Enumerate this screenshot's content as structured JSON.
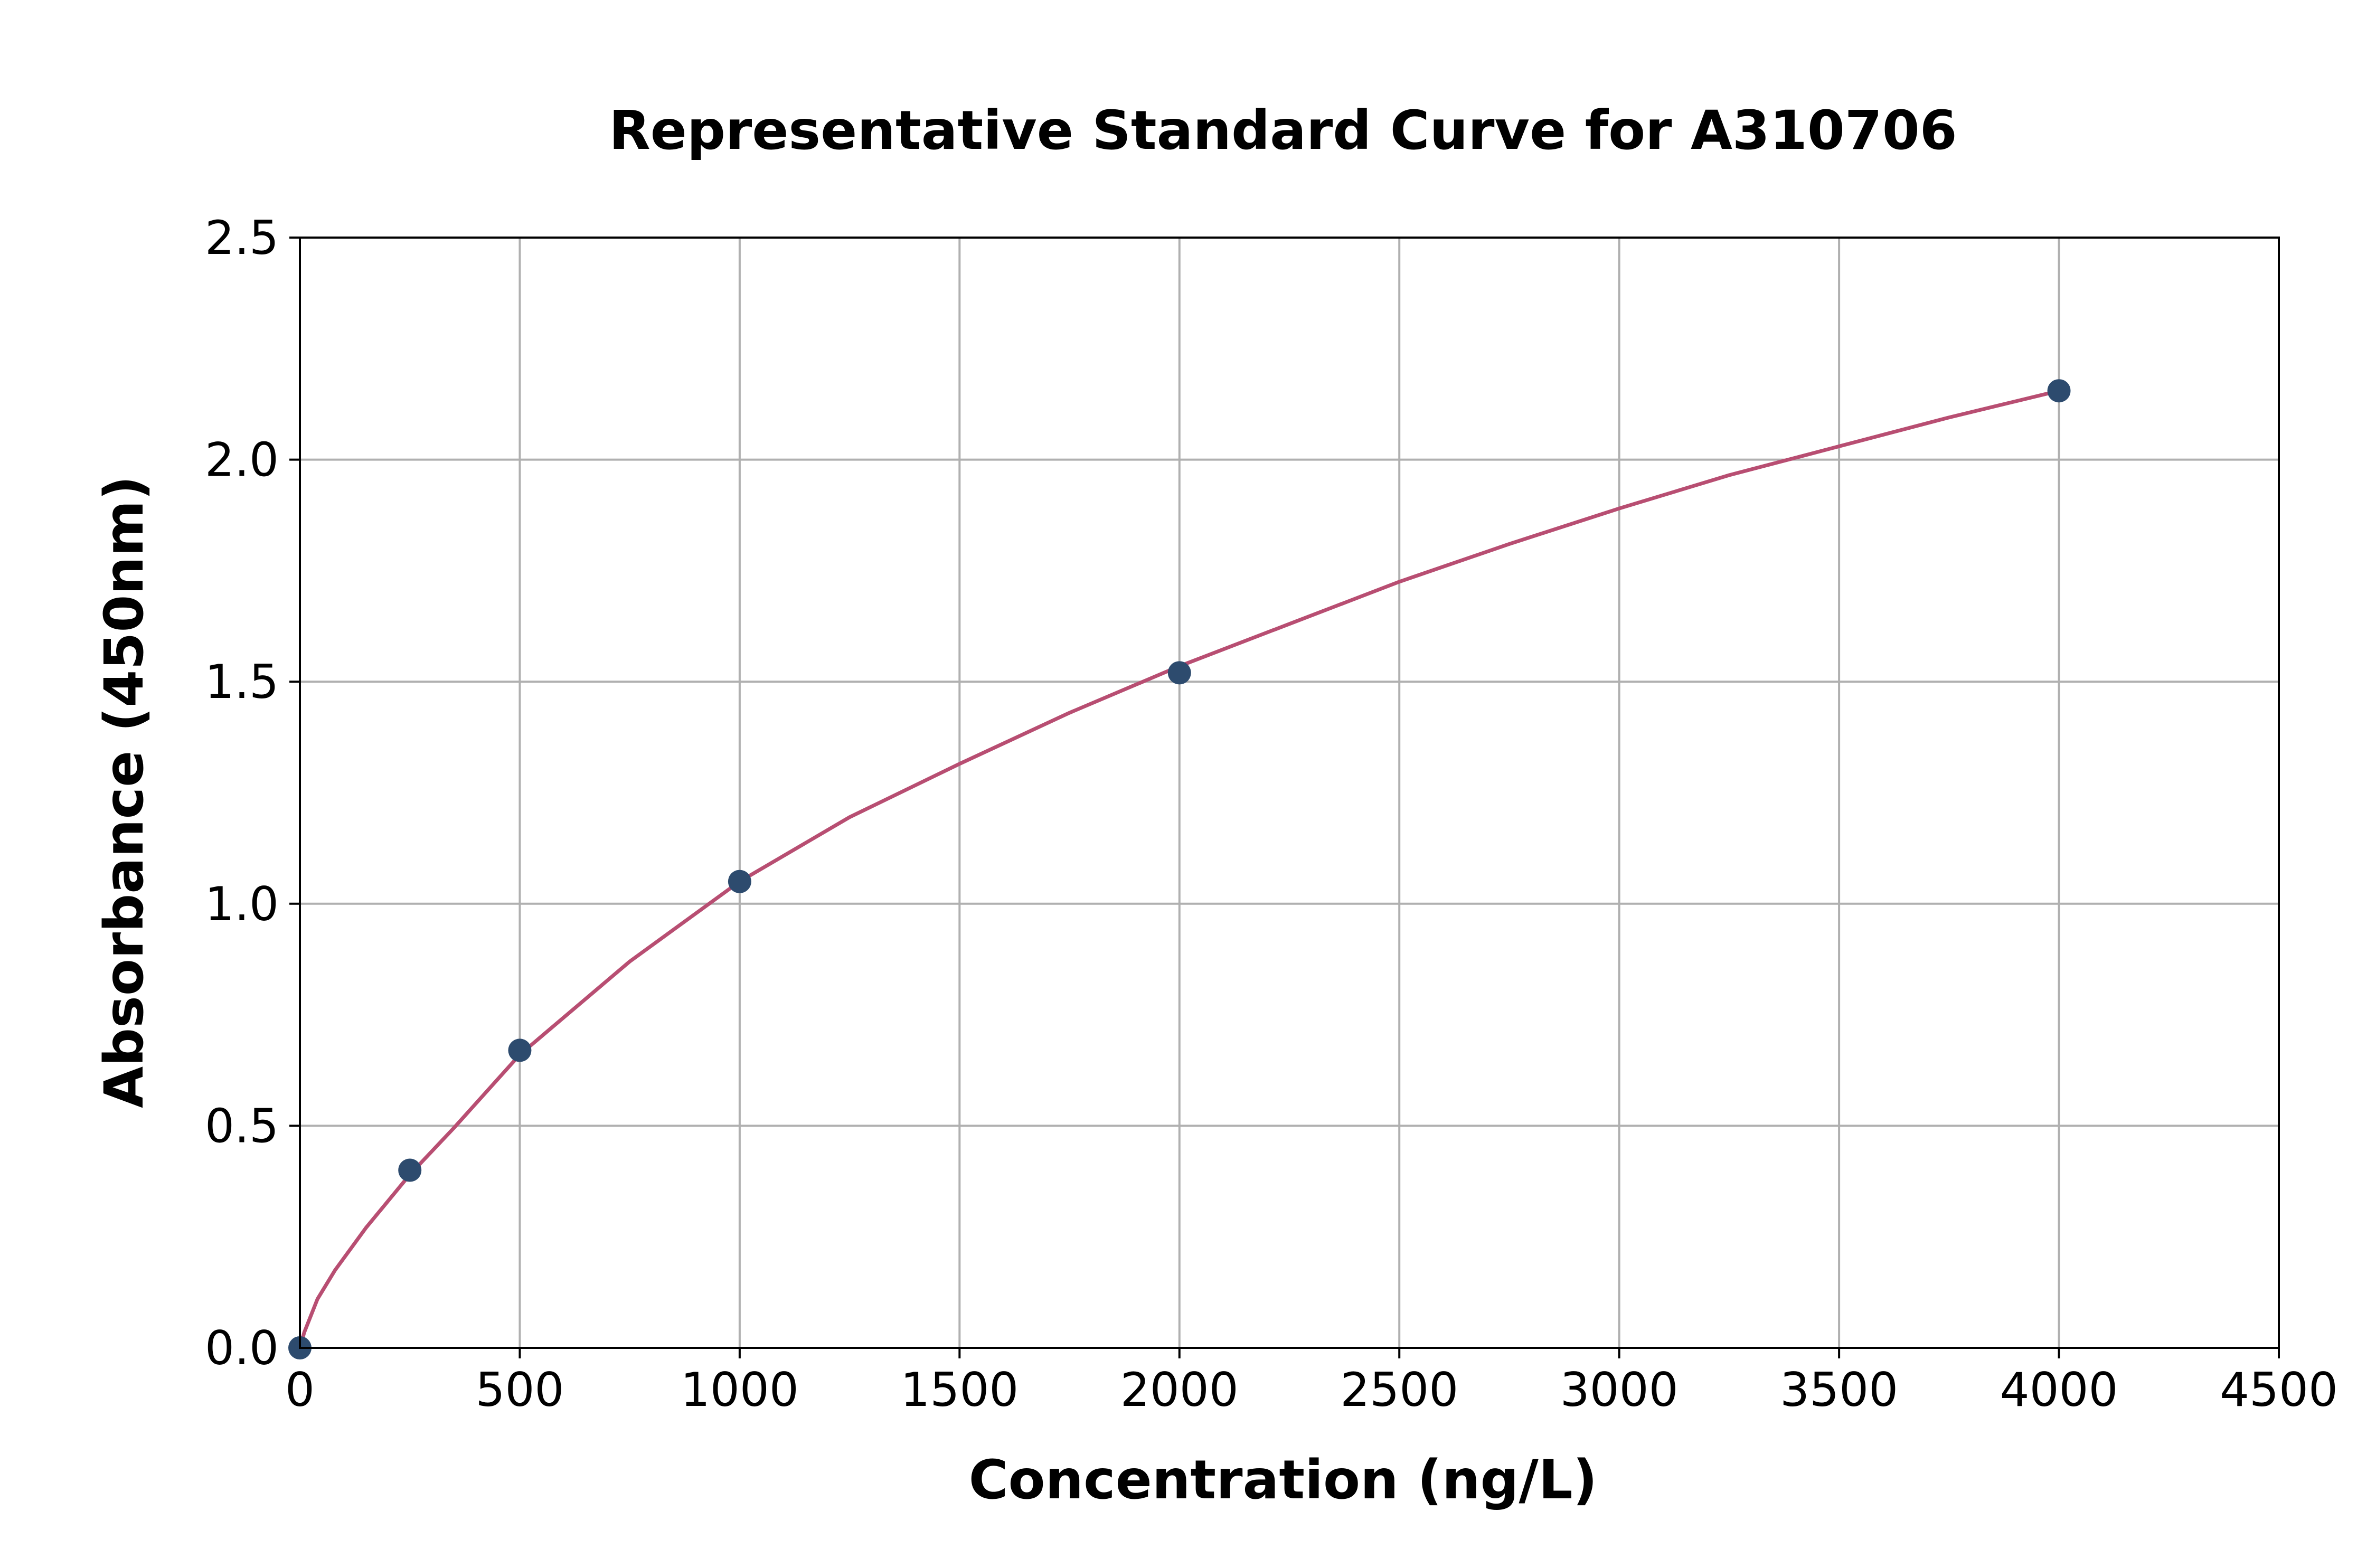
{
  "chart_data": {
    "type": "scatter",
    "title": "Representative Standard Curve for A310706",
    "xlabel": "Concentration (ng/L)",
    "ylabel": "Absorbance (450nm)",
    "xlim": [
      0,
      4500
    ],
    "ylim": [
      0,
      2.5
    ],
    "x_ticks": [
      0,
      500,
      1000,
      1500,
      2000,
      2500,
      3000,
      3500,
      4000,
      4500
    ],
    "x_tick_labels": [
      "0",
      "500",
      "1000",
      "1500",
      "2000",
      "2500",
      "3000",
      "3500",
      "4000",
      "4500"
    ],
    "y_ticks": [
      0,
      0.5,
      1.0,
      1.5,
      2.0,
      2.5
    ],
    "y_tick_labels": [
      "0.0",
      "0.5",
      "1.0",
      "1.5",
      "2.0",
      "2.5"
    ],
    "grid": true,
    "legend": "none",
    "series": [
      {
        "type": "scatter",
        "color": "#2d4b6e",
        "x": [
          0,
          250,
          500,
          1000,
          2000,
          4000
        ],
        "y": [
          0.0,
          0.4,
          0.67,
          1.05,
          1.52,
          2.155
        ]
      },
      {
        "type": "line",
        "color": "#b84e72",
        "x": [
          0,
          10,
          40,
          80,
          150,
          250,
          350,
          500,
          750,
          1000,
          1250,
          1500,
          1750,
          2000,
          2250,
          2500,
          2750,
          3000,
          3250,
          3500,
          3750,
          4000
        ],
        "y": [
          0.0,
          0.035,
          0.11,
          0.175,
          0.27,
          0.39,
          0.495,
          0.66,
          0.87,
          1.05,
          1.195,
          1.315,
          1.43,
          1.535,
          1.63,
          1.725,
          1.81,
          1.89,
          1.965,
          2.03,
          2.095,
          2.155
        ]
      }
    ]
  }
}
